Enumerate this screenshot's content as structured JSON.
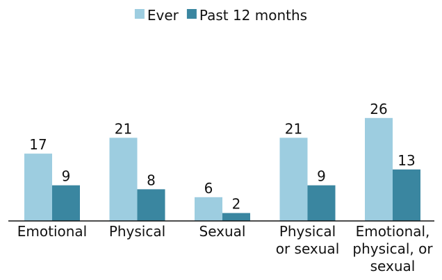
{
  "chart_data": {
    "type": "bar",
    "categories": [
      [
        "Emotional"
      ],
      [
        "Physical"
      ],
      [
        "Sexual"
      ],
      [
        "Physical",
        "or sexual"
      ],
      [
        "Emotional,",
        "physical, or",
        "sexual"
      ]
    ],
    "series": [
      {
        "name": "Ever",
        "color": "#9dcde0",
        "values": [
          17,
          21,
          6,
          21,
          26
        ]
      },
      {
        "name": "Past 12 months",
        "color": "#3a86a0",
        "values": [
          9,
          8,
          2,
          9,
          13
        ]
      }
    ],
    "legend": "top"
  }
}
